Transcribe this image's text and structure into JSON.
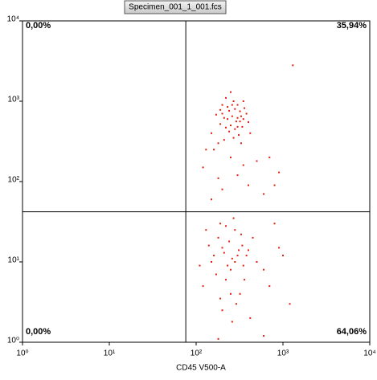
{
  "chart_data": {
    "type": "scatter",
    "title": "Specimen_001_1_001.fcs",
    "x_label": "CD45 V500-A",
    "log_x": true,
    "log_y": true,
    "color": "#e0200f",
    "xlim": [
      1,
      10000
    ],
    "ylim": [
      1,
      10000
    ],
    "xticks": [
      {
        "value": 1,
        "label": "10⁰"
      },
      {
        "value": 10,
        "label": "10¹"
      },
      {
        "value": 100,
        "label": "10²"
      },
      {
        "value": 1000,
        "label": "10³"
      },
      {
        "value": 10000,
        "label": "10⁴"
      }
    ],
    "yticks": [
      {
        "value": 1,
        "label": "10⁰"
      },
      {
        "value": 10,
        "label": "10¹"
      },
      {
        "value": 100,
        "label": "10²"
      },
      {
        "value": 1000,
        "label": "10³"
      },
      {
        "value": 10000,
        "label": "10⁴"
      }
    ],
    "gate_x": 76,
    "gate_y": 42,
    "quadrants": {
      "upper_left": "0,00%",
      "upper_right": "35,94%",
      "lower_left": "0,00%",
      "lower_right": "64,06%"
    },
    "x": [
      150,
      200,
      250,
      300,
      350,
      180,
      220,
      280,
      320,
      400,
      260,
      190,
      230,
      310,
      270,
      340,
      210,
      290,
      240,
      360,
      170,
      330,
      250,
      300,
      220,
      380,
      200,
      270,
      320,
      240,
      160,
      420,
      280,
      230,
      350,
      210,
      300,
      260,
      190,
      330,
      120,
      300,
      500,
      200,
      700,
      150,
      400,
      250,
      900,
      180,
      600,
      130,
      350,
      800,
      1300,
      150,
      200,
      250,
      300,
      180,
      220,
      280,
      350,
      400,
      120,
      260,
      190,
      320,
      240,
      170,
      210,
      290,
      330,
      500,
      140,
      230,
      270,
      360,
      200,
      310,
      160,
      250,
      450,
      600,
      130,
      220,
      280,
      380,
      700,
      900,
      110,
      260,
      340,
      190,
      800,
      1000,
      420,
      600,
      180,
      1200
    ],
    "y": [
      400,
      700,
      500,
      900,
      600,
      300,
      1100,
      450,
      750,
      550,
      650,
      520,
      850,
      380,
      1000,
      480,
      620,
      560,
      420,
      820,
      680,
      300,
      1300,
      620,
      470,
      700,
      900,
      350,
      560,
      760,
      250,
      400,
      800,
      600,
      1000,
      330,
      480,
      900,
      780,
      650,
      150,
      120,
      180,
      80,
      200,
      60,
      90,
      200,
      130,
      110,
      70,
      250,
      160,
      90,
      2800,
      10,
      15,
      8,
      12,
      20,
      6,
      25,
      9,
      14,
      5,
      11,
      30,
      4,
      18,
      7,
      13,
      3,
      22,
      10,
      16,
      9,
      35,
      6,
      2.5,
      14,
      12,
      4,
      20,
      8,
      25,
      28,
      10,
      12,
      5,
      15,
      9,
      1.8,
      16,
      3.5,
      30,
      12,
      2,
      1.2,
      1.1,
      3
    ]
  }
}
